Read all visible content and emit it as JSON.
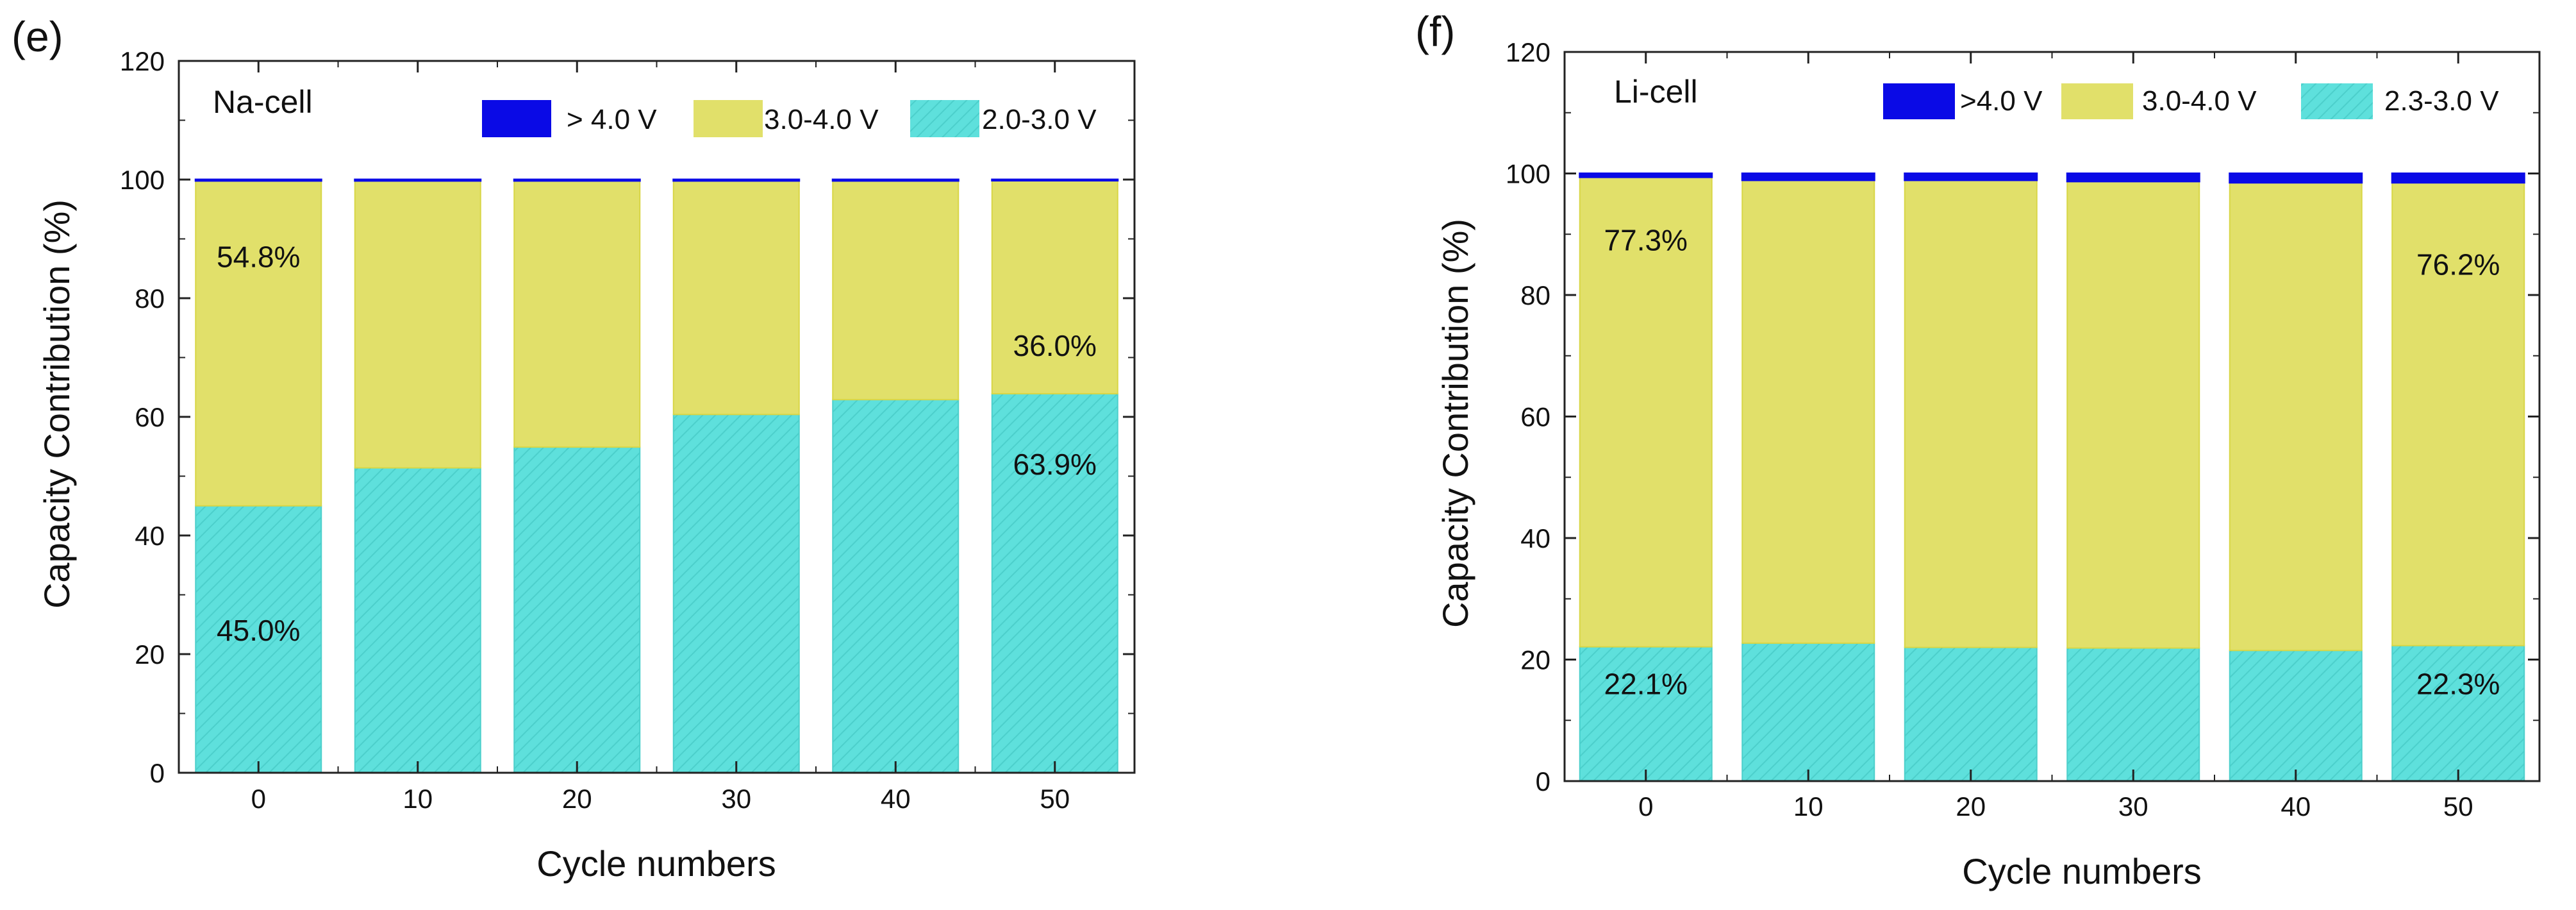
{
  "chart_data": [
    {
      "type": "bar",
      "stacked": true,
      "panel_label": "(e)",
      "title": "Na-cell",
      "xlabel": "Cycle numbers",
      "ylabel": "Capacity Contribution (%)",
      "ylim": [
        0,
        120
      ],
      "yticks": [
        "0",
        "20",
        "40",
        "60",
        "80",
        "100",
        "120"
      ],
      "categories": [
        "0",
        "10",
        "20",
        "30",
        "40",
        "50"
      ],
      "series": [
        {
          "name": "2.0-3.0 V",
          "color": "#5ee0dc",
          "values": [
            45.0,
            51.4,
            54.9,
            60.4,
            62.9,
            63.9
          ]
        },
        {
          "name": "3.0-4.0 V",
          "color": "#e1e06a",
          "values": [
            54.8,
            48.4,
            44.9,
            39.4,
            36.9,
            36.0
          ]
        },
        {
          "name": "> 4.0 V",
          "color": "#0a0ae6",
          "values": [
            0.2,
            0.2,
            0.2,
            0.2,
            0.2,
            0.1
          ]
        }
      ],
      "annotations": [
        {
          "text": "54.8%",
          "category": "0",
          "y": 87
        },
        {
          "text": "45.0%",
          "category": "0",
          "y": 24
        },
        {
          "text": "36.0%",
          "category": "50",
          "y": 72
        },
        {
          "text": "63.9%",
          "category": "50",
          "y": 52
        }
      ],
      "legend_position": "top-right",
      "grid": false
    },
    {
      "type": "bar",
      "stacked": true,
      "panel_label": "(f)",
      "title": "Li-cell",
      "xlabel": "Cycle numbers",
      "ylabel": "Capacity Contribution (%)",
      "ylim": [
        0,
        120
      ],
      "yticks": [
        "0",
        "20",
        "40",
        "60",
        "80",
        "100",
        "120"
      ],
      "categories": [
        "0",
        "10",
        "20",
        "30",
        "40",
        "50"
      ],
      "series": [
        {
          "name": "2.3-3.0 V",
          "color": "#5ee0dc",
          "values": [
            22.1,
            22.7,
            22.0,
            21.9,
            21.5,
            22.3
          ]
        },
        {
          "name": "3.0-4.0 V",
          "color": "#e1e06a",
          "values": [
            77.3,
            76.2,
            76.9,
            76.8,
            77.0,
            76.2
          ]
        },
        {
          "name": ">4.0 V",
          "color": "#0a0ae6",
          "values": [
            0.6,
            1.1,
            1.1,
            1.3,
            1.5,
            1.5
          ]
        }
      ],
      "annotations": [
        {
          "text": "77.3%",
          "category": "0",
          "y": 89
        },
        {
          "text": "22.1%",
          "category": "0",
          "y": 16
        },
        {
          "text": "76.2%",
          "category": "50",
          "y": 85
        },
        {
          "text": "22.3%",
          "category": "50",
          "y": 16
        }
      ],
      "legend_position": "top-right",
      "grid": false
    }
  ]
}
